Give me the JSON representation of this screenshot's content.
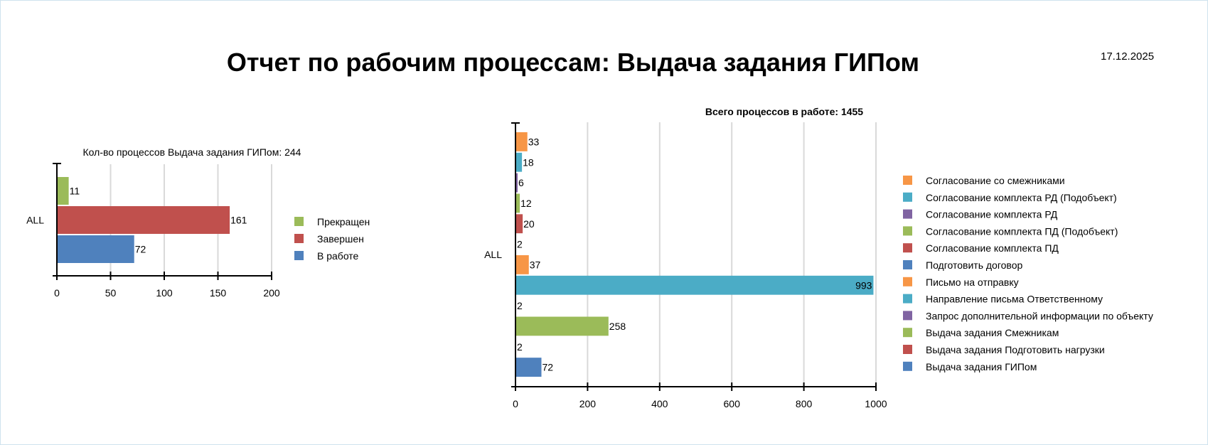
{
  "report": {
    "title": "Отчет по рабочим процессам: Выдача задания ГИПом",
    "date": "17.12.2025"
  },
  "chart_data": [
    {
      "type": "bar",
      "orientation": "horizontal",
      "title": "Кол-во процессов Выдача задания ГИПом: 244",
      "categories": [
        "ALL"
      ],
      "series": [
        {
          "name": "Прекращен",
          "values": [
            11
          ],
          "color": "#9bbb59"
        },
        {
          "name": "Завершен",
          "values": [
            161
          ],
          "color": "#c0504d"
        },
        {
          "name": "В работе",
          "values": [
            72
          ],
          "color": "#4f81bd"
        }
      ],
      "xlim": [
        0,
        200
      ],
      "xticks": [
        0,
        50,
        100,
        150,
        200
      ],
      "grid": true,
      "legend": "right"
    },
    {
      "type": "bar",
      "orientation": "horizontal",
      "title": "Всего процессов в работе: 1455",
      "categories": [
        "ALL"
      ],
      "series": [
        {
          "name": "Согласование со смежниками",
          "values": [
            33
          ],
          "color": "#f79646"
        },
        {
          "name": "Согласование комплекта РД (Подобъект)",
          "values": [
            18
          ],
          "color": "#4bacc6"
        },
        {
          "name": "Согласование комплекта РД",
          "values": [
            6
          ],
          "color": "#8064a2"
        },
        {
          "name": "Согласование комплекта ПД (Подобъект)",
          "values": [
            12
          ],
          "color": "#9bbb59"
        },
        {
          "name": "Согласование комплекта ПД",
          "values": [
            20
          ],
          "color": "#c0504d"
        },
        {
          "name": "Подготовить договор",
          "values": [
            2
          ],
          "color": "#4f81bd"
        },
        {
          "name": "Письмо на отправку",
          "values": [
            37
          ],
          "color": "#f79646"
        },
        {
          "name": "Направление письма Ответственному",
          "values": [
            993
          ],
          "color": "#4bacc6"
        },
        {
          "name": "Запрос дополнительной информации по объекту",
          "values": [
            2
          ],
          "color": "#8064a2"
        },
        {
          "name": "Выдача задания Смежникам",
          "values": [
            258
          ],
          "color": "#9bbb59"
        },
        {
          "name": "Выдача задания Подготовить нагрузки",
          "values": [
            2
          ],
          "color": "#c0504d"
        },
        {
          "name": "Выдача задания ГИПом",
          "values": [
            72
          ],
          "color": "#4f81bd"
        }
      ],
      "xlim": [
        0,
        1000
      ],
      "xticks": [
        0,
        200,
        400,
        600,
        800,
        1000
      ],
      "grid": true,
      "legend": "right"
    }
  ]
}
